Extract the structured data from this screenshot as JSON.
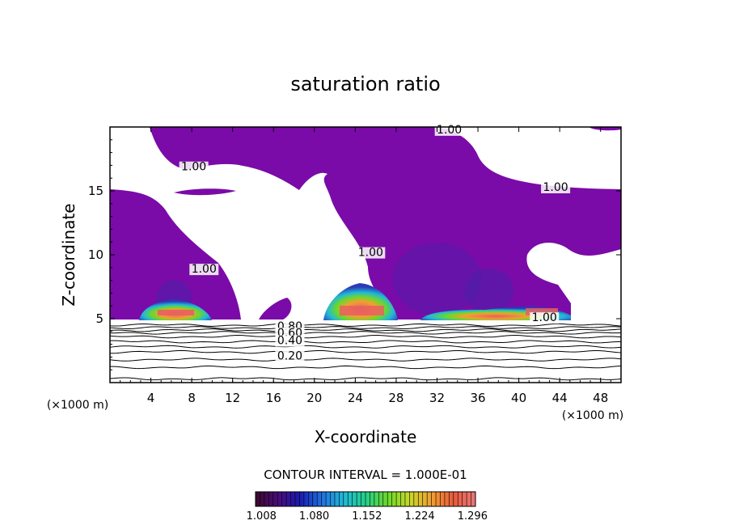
{
  "chart_data": {
    "type": "contour",
    "title": "saturation ratio",
    "xlabel": "X-coordinate",
    "ylabel": "Z-coordinate",
    "x_unit": "(×1000 m)",
    "y_unit": "(×1000 m)",
    "xlim": [
      0,
      50
    ],
    "ylim": [
      0,
      20
    ],
    "x_ticks": [
      4,
      8,
      12,
      16,
      20,
      24,
      28,
      32,
      36,
      40,
      44,
      48
    ],
    "y_ticks": [
      5,
      10,
      15
    ],
    "contour_interval_text": "CONTOUR INTERVAL = 1.000E-01",
    "contour_labels": [
      {
        "text": "1.00",
        "x": 33.2,
        "z": 19.5
      },
      {
        "text": "1.00",
        "x": 8.2,
        "z": 16.6
      },
      {
        "text": "1.00",
        "x": 43.6,
        "z": 15.0
      },
      {
        "text": "1.00",
        "x": 25.5,
        "z": 9.9
      },
      {
        "text": "1.00",
        "x": 9.2,
        "z": 8.6
      },
      {
        "text": "1.00",
        "x": 42.5,
        "z": 4.8
      },
      {
        "text": "0.80",
        "x": 17.6,
        "z": 4.1
      },
      {
        "text": "0.60",
        "x": 17.6,
        "z": 3.6
      },
      {
        "text": "0.40",
        "x": 17.6,
        "z": 3.0
      },
      {
        "text": "0.20",
        "x": 17.6,
        "z": 1.8
      }
    ],
    "low_contour_levels_z": [
      0.3,
      1.2,
      1.8,
      2.4,
      2.8,
      3.2,
      3.6,
      3.9,
      4.1,
      4.3,
      4.5
    ],
    "colorbar": {
      "ticks": [
        "1.008",
        "1.080",
        "1.152",
        "1.224",
        "1.296"
      ],
      "range": [
        1.0,
        1.3
      ],
      "colors": [
        "#3a0a2a",
        "#4b0b7a",
        "#1a1ab0",
        "#1e6fe0",
        "#22b8d8",
        "#22d08a",
        "#6ad82c",
        "#c8d828",
        "#f0a030",
        "#e85a3c",
        "#e8787a"
      ]
    },
    "grid": false
  }
}
